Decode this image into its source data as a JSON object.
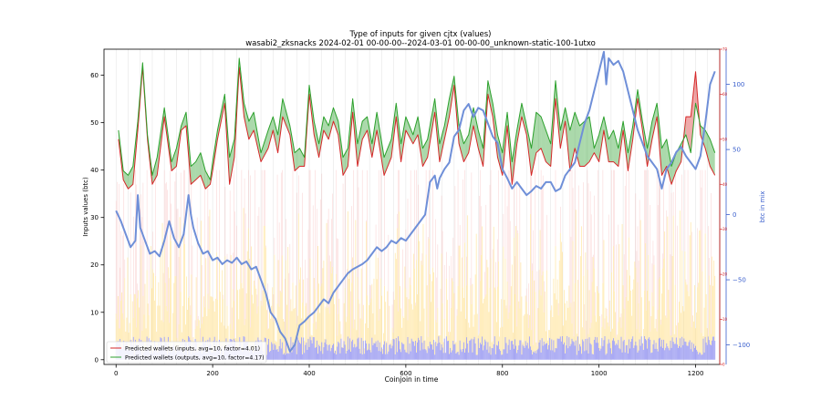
{
  "chart_data": {
    "type": "line",
    "title": "Type of inputs for given cjtx (values)",
    "subtitle": "wasabi2_zksnacks 2024-02-01 00-00-00--2024-03-01 00-00-00_unknown-static-100-1utxo",
    "xlabel": "Coinjoin in time",
    "ylabel": "Inputs values (btc)",
    "ylabel_right": "btc in mix",
    "xlim": [
      -25,
      1250
    ],
    "ylim": [
      -1,
      65.5
    ],
    "y2lim": [
      -115,
      127
    ],
    "y3lim": [
      0,
      70
    ],
    "x_ticks": [
      0,
      200,
      400,
      600,
      800,
      1000,
      1200
    ],
    "y_ticks": [
      0,
      10,
      20,
      30,
      40,
      50,
      60
    ],
    "y2_ticks": [
      -100,
      -50,
      0,
      50,
      100
    ],
    "y3_ticks": [
      0,
      10,
      20,
      30,
      40,
      50,
      60,
      70
    ],
    "grid": "vertical only",
    "legend_position": "lower-left",
    "colors": {
      "inputs": "#d62728",
      "outputs": "#2ca02c",
      "fill_outputs_gt_inputs": "#2ca02c",
      "fill_inputs_gt_outputs": "#d62728",
      "btc_in_mix": "#6f8fd8",
      "bars_low": "#8080ee",
      "bars_mid": "#ffe08a",
      "bars_high": "#f7b7b7",
      "right_axis_inner": "#d62728",
      "right_axis_outer": "#3a5fcd"
    },
    "series": [
      {
        "name": "Predicted wallets (inputs, avg=10, factor=4.01)",
        "axis": "right-inner",
        "x": [
          5,
          15,
          25,
          35,
          45,
          55,
          65,
          75,
          85,
          100,
          115,
          125,
          135,
          145,
          155,
          165,
          175,
          185,
          195,
          200,
          210,
          225,
          235,
          245,
          255,
          265,
          275,
          285,
          300,
          315,
          325,
          335,
          345,
          360,
          370,
          380,
          390,
          400,
          410,
          420,
          430,
          440,
          450,
          460,
          470,
          480,
          490,
          500,
          510,
          520,
          530,
          540,
          555,
          570,
          580,
          590,
          600,
          615,
          625,
          635,
          645,
          660,
          670,
          680,
          690,
          700,
          710,
          720,
          730,
          740,
          750,
          760,
          770,
          780,
          790,
          800,
          810,
          820,
          830,
          840,
          850,
          860,
          870,
          880,
          890,
          900,
          910,
          920,
          930,
          940,
          950,
          960,
          970,
          980,
          990,
          1000,
          1010,
          1020,
          1030,
          1040,
          1050,
          1060,
          1070,
          1080,
          1090,
          1100,
          1110,
          1120,
          1130,
          1140,
          1150,
          1160,
          1170,
          1180,
          1190,
          1200,
          1210,
          1220,
          1230,
          1240
        ],
        "values": [
          50,
          41,
          39,
          40,
          52,
          66,
          50,
          40,
          42,
          55,
          43,
          44,
          52,
          53,
          40,
          41,
          42,
          39,
          40,
          43,
          50,
          58,
          40,
          46,
          66,
          55,
          50,
          52,
          45,
          48,
          52,
          47,
          55,
          51,
          43,
          44,
          44,
          60,
          51,
          46,
          52,
          50,
          54,
          51,
          42,
          44,
          56,
          44,
          50,
          52,
          46,
          52,
          42,
          46,
          55,
          45,
          52,
          49,
          51,
          44,
          46,
          56,
          45,
          50,
          55,
          62,
          49,
          45,
          47,
          53,
          48,
          44,
          60,
          55,
          46,
          42,
          53,
          40,
          49,
          55,
          51,
          42,
          47,
          48,
          45,
          44,
          59,
          48,
          54,
          43,
          48,
          44,
          44,
          45,
          47,
          45,
          52,
          45,
          45,
          44,
          52,
          43,
          50,
          59,
          52,
          44,
          50,
          55,
          42,
          44,
          40,
          43,
          45,
          55,
          55,
          65,
          51,
          48,
          44,
          42
        ]
      },
      {
        "name": "Predicted wallets (outputs, avg=10, factor=4.17)",
        "axis": "right-inner",
        "x": [
          5,
          15,
          25,
          35,
          45,
          55,
          65,
          75,
          85,
          100,
          115,
          125,
          135,
          145,
          155,
          165,
          175,
          185,
          195,
          200,
          210,
          225,
          235,
          245,
          255,
          265,
          275,
          285,
          300,
          315,
          325,
          335,
          345,
          360,
          370,
          380,
          390,
          400,
          410,
          420,
          430,
          440,
          450,
          460,
          470,
          480,
          490,
          500,
          510,
          520,
          530,
          540,
          555,
          570,
          580,
          590,
          600,
          615,
          625,
          635,
          645,
          660,
          670,
          680,
          690,
          700,
          710,
          720,
          730,
          740,
          750,
          760,
          770,
          780,
          790,
          800,
          810,
          820,
          830,
          840,
          850,
          860,
          870,
          880,
          890,
          900,
          910,
          920,
          930,
          940,
          950,
          960,
          970,
          980,
          990,
          1000,
          1010,
          1020,
          1030,
          1040,
          1050,
          1060,
          1070,
          1080,
          1090,
          1100,
          1110,
          1120,
          1130,
          1140,
          1150,
          1160,
          1170,
          1180,
          1190,
          1200,
          1210,
          1220,
          1230,
          1240
        ],
        "values": [
          52,
          43,
          42,
          44,
          54,
          67,
          51,
          42,
          46,
          57,
          45,
          48,
          53,
          56,
          44,
          45,
          47,
          43,
          41,
          45,
          52,
          60,
          46,
          50,
          68,
          58,
          54,
          56,
          47,
          52,
          55,
          51,
          59,
          53,
          47,
          48,
          46,
          62,
          54,
          49,
          55,
          53,
          57,
          54,
          46,
          48,
          59,
          49,
          54,
          55,
          49,
          56,
          46,
          50,
          58,
          49,
          55,
          51,
          55,
          48,
          50,
          59,
          49,
          53,
          59,
          64,
          53,
          49,
          51,
          57,
          52,
          48,
          63,
          58,
          51,
          47,
          56,
          45,
          52,
          58,
          53,
          48,
          56,
          55,
          52,
          49,
          63,
          52,
          57,
          52,
          56,
          53,
          54,
          55,
          48,
          51,
          55,
          50,
          52,
          48,
          54,
          47,
          53,
          61,
          54,
          48,
          54,
          58,
          48,
          50,
          44,
          47,
          49,
          51,
          47,
          58,
          53,
          52,
          50,
          47
        ]
      },
      {
        "name": "btc in mix",
        "axis": "right-outer",
        "x": [
          0,
          10,
          20,
          30,
          40,
          45,
          50,
          60,
          70,
          80,
          90,
          100,
          110,
          120,
          130,
          140,
          150,
          155,
          160,
          170,
          180,
          190,
          200,
          210,
          220,
          230,
          240,
          250,
          260,
          270,
          280,
          290,
          300,
          310,
          320,
          330,
          340,
          350,
          360,
          370,
          380,
          390,
          400,
          410,
          420,
          430,
          440,
          450,
          460,
          470,
          480,
          490,
          500,
          510,
          520,
          530,
          540,
          550,
          560,
          570,
          580,
          590,
          600,
          610,
          620,
          630,
          640,
          650,
          660,
          665,
          670,
          680,
          690,
          700,
          710,
          720,
          730,
          740,
          750,
          760,
          770,
          780,
          790,
          800,
          810,
          820,
          830,
          840,
          850,
          860,
          870,
          880,
          890,
          900,
          910,
          920,
          930,
          940,
          950,
          960,
          970,
          980,
          990,
          1000,
          1010,
          1015,
          1020,
          1030,
          1040,
          1050,
          1060,
          1070,
          1080,
          1090,
          1100,
          1110,
          1120,
          1130,
          1140,
          1150,
          1160,
          1170,
          1180,
          1190,
          1200,
          1210,
          1220,
          1230,
          1240
        ],
        "values": [
          3,
          -5,
          -15,
          -25,
          -20,
          15,
          -10,
          -20,
          -30,
          -28,
          -32,
          -20,
          -5,
          -18,
          -25,
          -15,
          15,
          0,
          -10,
          -22,
          -30,
          -28,
          -35,
          -33,
          -38,
          -35,
          -37,
          -33,
          -38,
          -36,
          -42,
          -40,
          -50,
          -60,
          -75,
          -80,
          -90,
          -95,
          -105,
          -100,
          -85,
          -82,
          -78,
          -75,
          -70,
          -65,
          -68,
          -60,
          -55,
          -50,
          -45,
          -42,
          -40,
          -38,
          -35,
          -30,
          -25,
          -28,
          -25,
          -20,
          -22,
          -18,
          -20,
          -15,
          -10,
          -5,
          0,
          25,
          30,
          20,
          28,
          35,
          40,
          60,
          65,
          80,
          85,
          75,
          82,
          80,
          70,
          60,
          55,
          35,
          28,
          20,
          25,
          20,
          15,
          18,
          22,
          20,
          25,
          25,
          18,
          20,
          30,
          35,
          40,
          55,
          70,
          80,
          95,
          110,
          125,
          100,
          120,
          115,
          118,
          110,
          95,
          80,
          65,
          55,
          45,
          40,
          35,
          20,
          35,
          40,
          48,
          52,
          45,
          40,
          35,
          45,
          70,
          100,
          110
        ]
      }
    ],
    "bars": {
      "axis": "left",
      "description_values": [
        5,
        9,
        14,
        20,
        28,
        35
      ]
    }
  }
}
